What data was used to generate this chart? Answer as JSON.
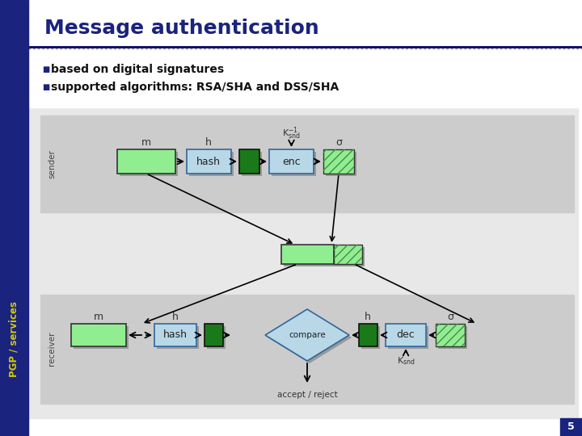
{
  "title": "Message authentication",
  "bullet1": "based on digital signatures",
  "bullet2": "supported algorithms: RSA/SHA and DSS/SHA",
  "sidebar_text": "PGP / services",
  "slide_number": "5",
  "dark_blue": "#1a237e",
  "light_blue_box": "#b8d8e8",
  "light_green": "#90ee90",
  "dark_green": "#1a7a1a",
  "gray_panel": "#cccccc",
  "white": "#ffffff",
  "content_bg": "#e8e8e8",
  "sender_label": "sender",
  "receiver_label": "receiver",
  "page_num": "5",
  "sidebar_yellow": "#d4c800",
  "title_line_color": "#000066",
  "shadow_color": "#999999"
}
